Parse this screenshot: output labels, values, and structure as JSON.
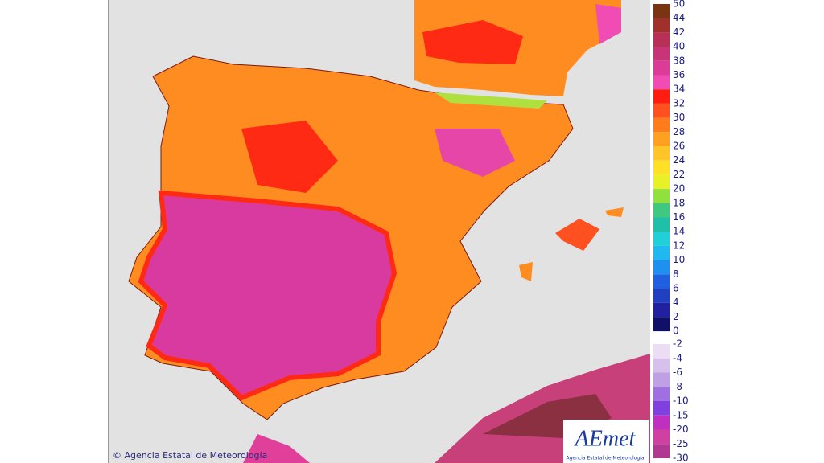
{
  "map": {
    "copyright": "© Agencia Estatal de Meteorología",
    "logo": {
      "title": "AEmet",
      "subtitle": "Agencia Estatal de Meteorología"
    },
    "legend": {
      "upper": {
        "labels": [
          50,
          44,
          42,
          40,
          38,
          36,
          34,
          32,
          30,
          28,
          26,
          24,
          22,
          20,
          18,
          16,
          14,
          12,
          10,
          8,
          6,
          4,
          2,
          0
        ],
        "colors": [
          "#7a3412",
          "#a0302c",
          "#b83058",
          "#c83478",
          "#dc3c98",
          "#f04cb4",
          "#ff1c10",
          "#ff5020",
          "#ff7c1c",
          "#ffa020",
          "#ffc428",
          "#ffe028",
          "#e8f028",
          "#90e040",
          "#40c880",
          "#20c0a8",
          "#20d0d8",
          "#20b8f0",
          "#2090f0",
          "#2060e0",
          "#2040c0",
          "#2020a0",
          "#101068"
        ]
      },
      "lower": {
        "labels": [
          -2,
          -4,
          -6,
          -8,
          -10,
          -15,
          -20,
          -25,
          -30
        ],
        "colors": [
          "#ecdcf4",
          "#d8c0ec",
          "#c0a0e4",
          "#a070e0",
          "#8040e0",
          "#c030c0",
          "#d040a0",
          "#b03890"
        ]
      }
    }
  }
}
